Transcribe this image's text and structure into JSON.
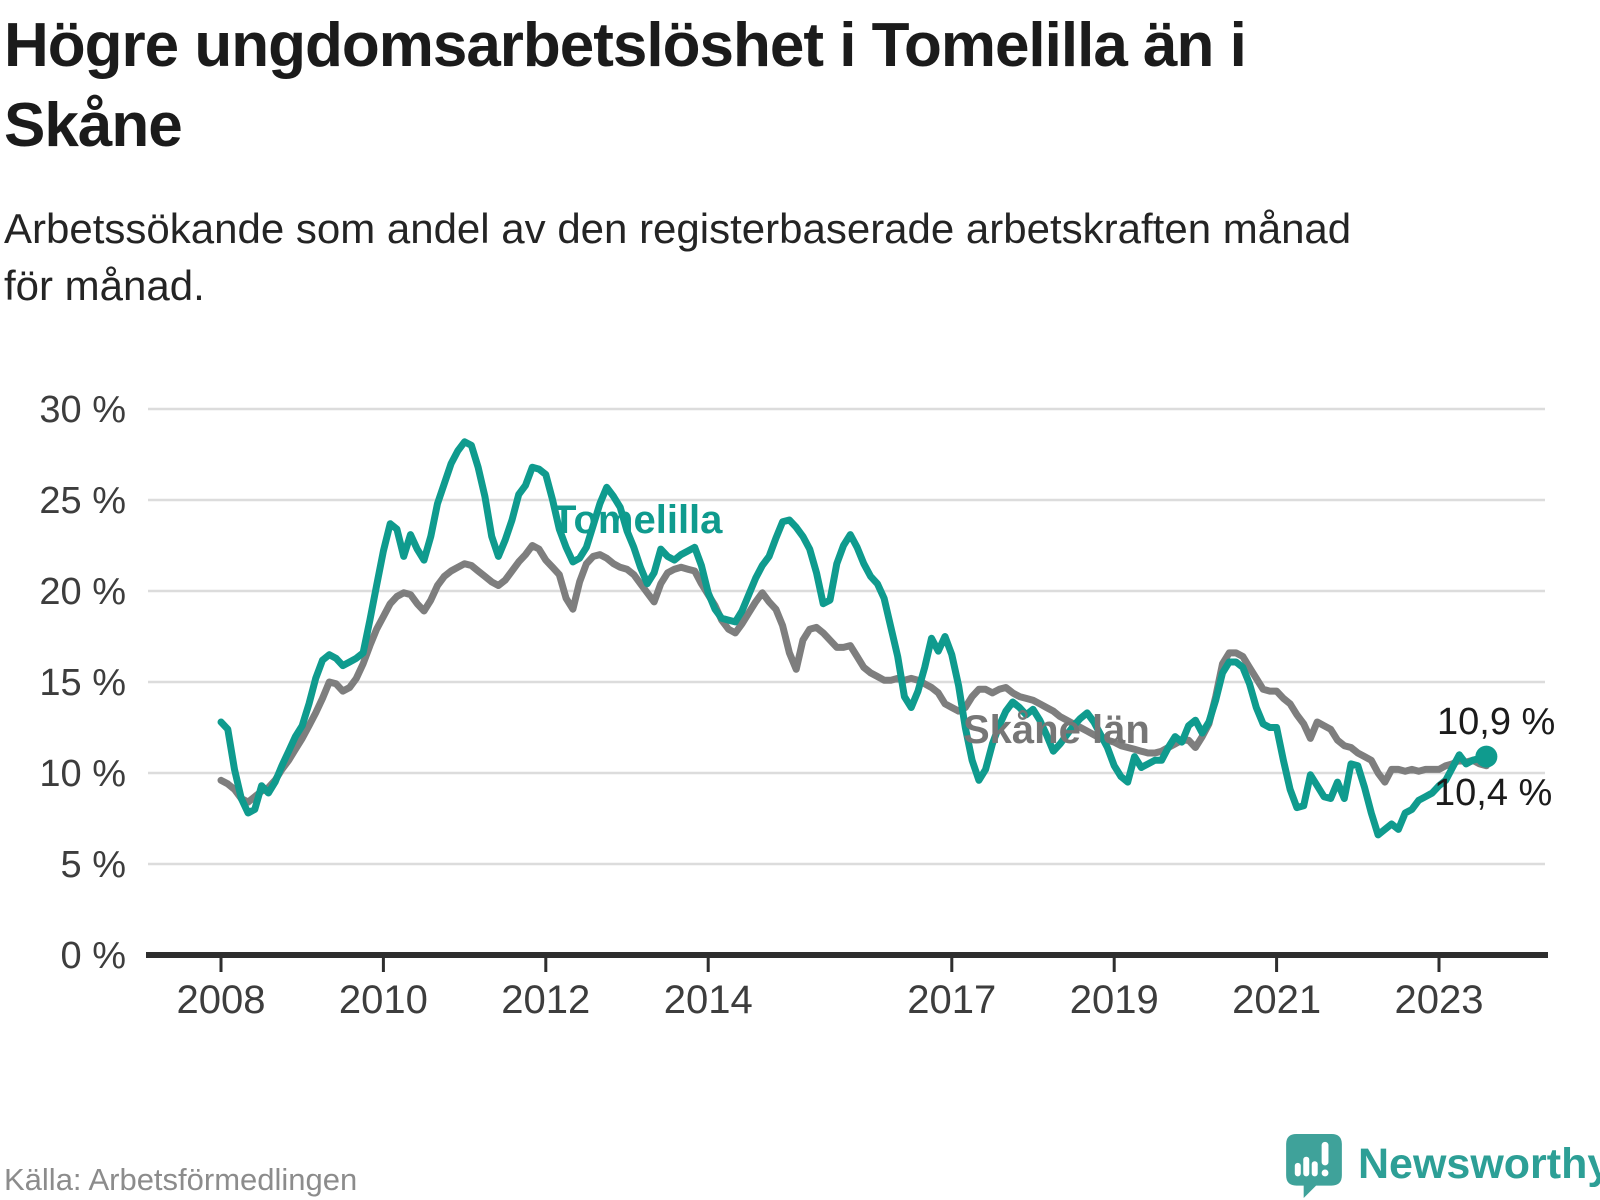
{
  "header": {
    "title_lines": [
      "Högre ungdomsarbetslöshet i Tomelilla än i",
      "Skåne"
    ],
    "subtitle_lines": [
      "Arbetssökande som andel av den registerbaserade arbetskraften månad",
      "för månad."
    ]
  },
  "annotations": {
    "series1_label": "Tomelilla",
    "series2_label": "Skåne län",
    "series1_end_value": "10,9 %",
    "series2_end_value": "10,4 %"
  },
  "footer": {
    "source": "Källa: Arbetsförmedlingen",
    "brand": "Newsworthy"
  },
  "colors": {
    "series1": "#0f9b8e",
    "series2": "#7e7e7e",
    "grid": "#dcdcdc",
    "axis": "#2e2e2e",
    "tick_label": "#3d3d3d",
    "logo": "#3fa29a"
  },
  "chart_data": {
    "type": "line",
    "title": "Högre ungdomsarbetslöshet i Tomelilla än i Skåne",
    "subtitle": "Arbetssökande som andel av den registerbaserade arbetskraften månad för månad.",
    "x_start_year": 2008,
    "x_start_month": 1,
    "x_frequency": "monthly",
    "ylim": [
      0,
      30
    ],
    "y_ticks": [
      0,
      5,
      10,
      15,
      20,
      25,
      30
    ],
    "y_tick_labels": [
      "0 %",
      "5 %",
      "10 %",
      "15 %",
      "20 %",
      "25 %",
      "30 %"
    ],
    "x_tick_years": [
      2008,
      2010,
      2012,
      2014,
      2017,
      2019,
      2021,
      2023
    ],
    "x_tick_labels": [
      "2008",
      "2010",
      "2012",
      "2014",
      "2017",
      "2019",
      "2021",
      "2023"
    ],
    "grid": "horizontal",
    "legend_position": "inline-labels",
    "series": [
      {
        "name": "Tomelilla",
        "color": "#0f9b8e",
        "end_label": "10,9 %",
        "end_value": 10.9,
        "values": [
          12.8,
          12.4,
          10.2,
          8.6,
          7.8,
          8.0,
          9.3,
          8.9,
          9.5,
          10.4,
          11.2,
          12.0,
          12.6,
          13.8,
          15.2,
          16.2,
          16.5,
          16.3,
          15.9,
          16.1,
          16.3,
          16.6,
          18.4,
          20.3,
          22.2,
          23.7,
          23.4,
          21.9,
          23.1,
          22.3,
          21.7,
          23.0,
          24.8,
          25.9,
          27.0,
          27.7,
          28.2,
          28.0,
          26.8,
          25.2,
          23.0,
          21.9,
          22.8,
          23.9,
          25.3,
          25.8,
          26.8,
          26.7,
          26.4,
          25.0,
          23.4,
          22.4,
          21.6,
          21.8,
          22.4,
          23.6,
          24.8,
          25.7,
          25.2,
          24.6,
          23.3,
          22.4,
          21.3,
          20.4,
          21.0,
          22.3,
          21.9,
          21.7,
          22.0,
          22.2,
          22.4,
          21.4,
          19.9,
          19.0,
          18.5,
          18.4,
          18.3,
          18.9,
          19.8,
          20.7,
          21.4,
          21.9,
          22.9,
          23.8,
          23.9,
          23.5,
          23.0,
          22.3,
          21.0,
          19.3,
          19.5,
          21.5,
          22.5,
          23.1,
          22.4,
          21.5,
          20.8,
          20.4,
          19.6,
          18.0,
          16.4,
          14.2,
          13.6,
          14.5,
          15.8,
          17.4,
          16.7,
          17.5,
          16.5,
          14.8,
          12.5,
          10.7,
          9.6,
          10.2,
          11.6,
          12.6,
          13.4,
          13.9,
          13.6,
          13.2,
          13.5,
          12.9,
          12.1,
          11.2,
          11.6,
          12.1,
          12.6,
          13.0,
          13.3,
          12.8,
          12.1,
          11.4,
          10.4,
          9.8,
          9.5,
          10.9,
          10.3,
          10.5,
          10.7,
          10.7,
          11.4,
          12.0,
          11.7,
          12.6,
          12.9,
          12.2,
          12.8,
          14.0,
          15.5,
          16.1,
          16.1,
          15.8,
          14.9,
          13.6,
          12.7,
          12.5,
          12.5,
          10.7,
          9.1,
          8.1,
          8.2,
          9.9,
          9.3,
          8.7,
          8.6,
          9.5,
          8.6,
          10.5,
          10.4,
          9.2,
          7.8,
          6.6,
          6.9,
          7.2,
          6.9,
          7.8,
          8.0,
          8.5,
          8.7,
          8.9,
          9.3,
          9.6,
          10.3,
          11.0,
          10.5,
          10.7,
          10.8,
          10.9
        ]
      },
      {
        "name": "Skåne län",
        "color": "#7e7e7e",
        "end_label": "10,4 %",
        "end_value": 10.4,
        "values": [
          9.6,
          9.4,
          9.1,
          8.6,
          8.4,
          8.7,
          9.0,
          9.2,
          9.6,
          10.2,
          10.7,
          11.3,
          11.9,
          12.6,
          13.3,
          14.1,
          15.0,
          14.9,
          14.5,
          14.7,
          15.2,
          16.0,
          17.0,
          17.9,
          18.6,
          19.3,
          19.7,
          19.9,
          19.8,
          19.3,
          18.9,
          19.5,
          20.3,
          20.8,
          21.1,
          21.3,
          21.5,
          21.4,
          21.1,
          20.8,
          20.5,
          20.3,
          20.6,
          21.1,
          21.6,
          22.0,
          22.5,
          22.3,
          21.7,
          21.3,
          20.9,
          19.6,
          19.0,
          20.5,
          21.5,
          21.9,
          22.0,
          21.8,
          21.5,
          21.3,
          21.2,
          20.9,
          20.4,
          19.9,
          19.4,
          20.4,
          21.0,
          21.2,
          21.3,
          21.2,
          21.1,
          20.4,
          19.8,
          19.2,
          18.4,
          17.9,
          17.7,
          18.2,
          18.8,
          19.4,
          19.9,
          19.4,
          19.0,
          18.1,
          16.6,
          15.7,
          17.3,
          17.9,
          18.0,
          17.7,
          17.3,
          16.9,
          16.9,
          17.0,
          16.4,
          15.8,
          15.5,
          15.3,
          15.1,
          15.1,
          15.2,
          15.1,
          15.2,
          15.1,
          14.9,
          14.7,
          14.4,
          13.8,
          13.6,
          13.4,
          13.6,
          14.2,
          14.6,
          14.6,
          14.4,
          14.6,
          14.7,
          14.4,
          14.2,
          14.1,
          14.0,
          13.8,
          13.6,
          13.4,
          13.1,
          12.9,
          12.7,
          12.5,
          12.3,
          12.1,
          11.9,
          11.8,
          11.7,
          11.5,
          11.4,
          11.3,
          11.2,
          11.1,
          11.1,
          11.2,
          11.4,
          11.6,
          11.8,
          11.8,
          11.4,
          12.0,
          12.7,
          14.2,
          16.0,
          16.6,
          16.6,
          16.4,
          15.8,
          15.2,
          14.6,
          14.5,
          14.5,
          14.1,
          13.8,
          13.2,
          12.7,
          11.9,
          12.8,
          12.6,
          12.4,
          11.8,
          11.5,
          11.4,
          11.1,
          10.9,
          10.7,
          10.0,
          9.5,
          10.2,
          10.2,
          10.1,
          10.2,
          10.1,
          10.2,
          10.2,
          10.2,
          10.4,
          10.5,
          10.7,
          10.6,
          10.7,
          10.5,
          10.4
        ]
      }
    ]
  }
}
